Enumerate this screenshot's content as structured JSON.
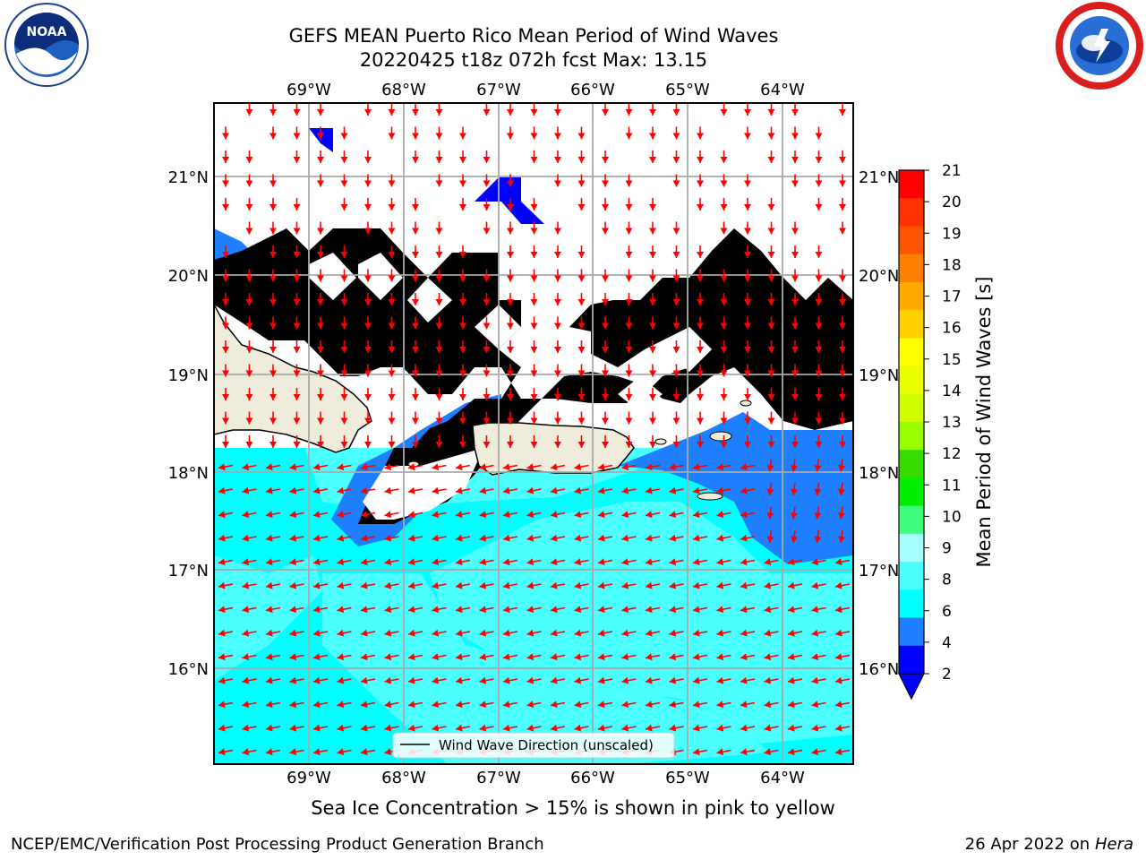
{
  "title": {
    "line1": "GEFS MEAN Puerto Rico Mean Period of Wind Waves",
    "line2": "20220425 t18z 072h fcst   Max: 13.15"
  },
  "map": {
    "lon_labels": [
      "69°W",
      "68°W",
      "67°W",
      "66°W",
      "65°W",
      "64°W"
    ],
    "lat_labels": [
      "21°N",
      "20°N",
      "19°N",
      "18°N",
      "17°N",
      "16°N"
    ],
    "legend_label": "Wind Wave Direction (unscaled)",
    "land_color": "#efecdc",
    "arrow_color": "#ff0000",
    "ocean_colors": {
      "very_short": "#0000ff",
      "short": "#1e7fff",
      "medium": "#00ffff",
      "long": "#4bffff"
    }
  },
  "colorbar": {
    "label": "Mean Period of Wind Waves [s]",
    "ticks": [
      "21",
      "20",
      "19",
      "18",
      "17",
      "16",
      "15",
      "14",
      "13",
      "12",
      "11",
      "10",
      "9",
      "8",
      "6",
      "4",
      "2"
    ],
    "colors": [
      "#ff0000",
      "#ff3300",
      "#ff5500",
      "#ff8000",
      "#ffaa00",
      "#ffd000",
      "#ffff00",
      "#eaff00",
      "#d0ff00",
      "#99ff00",
      "#33dd00",
      "#00ee00",
      "#40ff80",
      "#a6ffff",
      "#4bffff",
      "#00ffff",
      "#1e7fff",
      "#0000ff"
    ]
  },
  "caption": "Sea Ice Concentration > 15% is shown in pink to yellow",
  "footer": {
    "left": "NCEP/EMC/Verification Post Processing Product Generation Branch",
    "date": "26 Apr 2022 on ",
    "host": "Hera"
  },
  "logos": {
    "left": "noaa-logo",
    "right": "nws-logo"
  }
}
